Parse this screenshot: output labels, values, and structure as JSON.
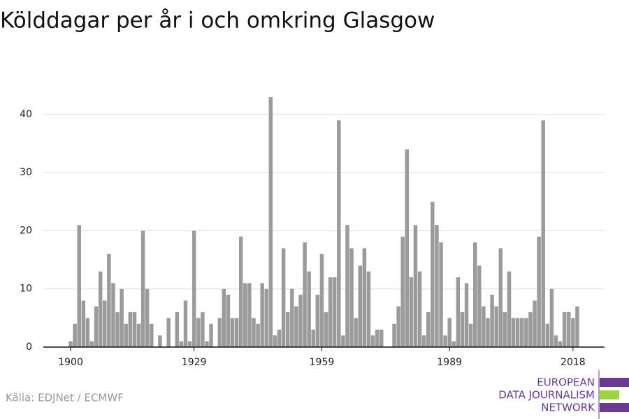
{
  "chart_data": {
    "type": "bar",
    "title": "Kölddagar per år i och omkring Glasgow",
    "source": "Källa: EDJNet / ECMWF",
    "logo": [
      "EUROPEAN",
      "DATA JOURNALISM",
      "NETWORK"
    ],
    "color": "#9b9b9b",
    "x": [
      1900,
      1901,
      1902,
      1903,
      1904,
      1905,
      1906,
      1907,
      1908,
      1909,
      1910,
      1911,
      1912,
      1913,
      1914,
      1915,
      1916,
      1917,
      1918,
      1919,
      1920,
      1921,
      1922,
      1923,
      1924,
      1925,
      1926,
      1927,
      1928,
      1929,
      1930,
      1931,
      1932,
      1933,
      1934,
      1935,
      1936,
      1937,
      1938,
      1939,
      1940,
      1941,
      1942,
      1943,
      1944,
      1945,
      1946,
      1947,
      1948,
      1949,
      1950,
      1951,
      1952,
      1953,
      1954,
      1955,
      1956,
      1957,
      1958,
      1959,
      1960,
      1961,
      1962,
      1963,
      1964,
      1965,
      1966,
      1967,
      1968,
      1969,
      1970,
      1971,
      1972,
      1973,
      1974,
      1975,
      1976,
      1977,
      1978,
      1979,
      1980,
      1981,
      1982,
      1983,
      1984,
      1985,
      1986,
      1987,
      1988,
      1989,
      1990,
      1991,
      1992,
      1993,
      1994,
      1995,
      1996,
      1997,
      1998,
      1999,
      2000,
      2001,
      2002,
      2003,
      2004,
      2005,
      2006,
      2007,
      2008,
      2009,
      2010,
      2011,
      2012,
      2013,
      2014,
      2015,
      2016,
      2017,
      2018,
      2019
    ],
    "values": [
      1,
      4,
      21,
      8,
      5,
      1,
      7,
      13,
      8,
      16,
      11,
      6,
      10,
      4,
      6,
      6,
      4,
      20,
      10,
      4,
      0,
      2,
      0,
      5,
      0,
      6,
      1,
      8,
      1,
      20,
      5,
      6,
      1,
      4,
      0,
      5,
      10,
      9,
      5,
      5,
      19,
      11,
      11,
      5,
      4,
      11,
      10,
      43,
      2,
      3,
      17,
      6,
      10,
      7,
      9,
      18,
      13,
      3,
      9,
      16,
      6,
      12,
      12,
      39,
      2,
      21,
      17,
      5,
      14,
      17,
      13,
      2,
      3,
      3,
      0,
      0,
      4,
      7,
      19,
      34,
      12,
      21,
      13,
      2,
      6,
      25,
      21,
      18,
      2,
      5,
      1,
      12,
      6,
      11,
      4,
      18,
      14,
      7,
      5,
      9,
      7,
      17,
      6,
      13,
      5,
      5,
      5,
      5,
      6,
      8,
      19,
      39,
      4,
      10,
      2,
      1,
      6,
      6,
      5,
      7
    ],
    "xlim": [
      1899.5,
      2019.5
    ],
    "xticks": [
      1900,
      1929,
      1959,
      1989,
      2018
    ],
    "ylim": [
      0,
      43
    ],
    "yticks": [
      0,
      10,
      20,
      30,
      40
    ],
    "grid": true
  }
}
